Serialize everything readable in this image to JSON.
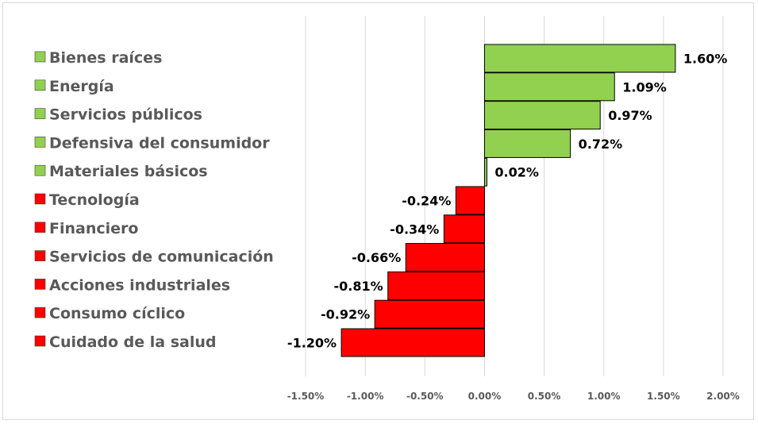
{
  "chart_data": {
    "type": "bar",
    "orientation": "horizontal",
    "categories": [
      "Bienes raíces",
      "Energía",
      "Servicios públicos",
      "Defensiva del consumidor",
      "Materiales básicos",
      "Tecnología",
      "Financiero",
      "Servicios de comunicación",
      "Acciones industriales",
      "Consumo cíclico",
      "Cuidado de la salud"
    ],
    "values": [
      1.6,
      1.09,
      0.97,
      0.72,
      0.02,
      -0.24,
      -0.34,
      -0.66,
      -0.81,
      -0.92,
      -1.2
    ],
    "data_labels": [
      "1.60%",
      "1.09%",
      "0.97%",
      "0.72%",
      "0.02%",
      "-0.24%",
      "-0.34%",
      "-0.66%",
      "-0.81%",
      "-0.92%",
      "-1.20%"
    ],
    "unit": "%",
    "xlim": [
      -1.5,
      2.0
    ],
    "x_ticks": [
      -1.5,
      -1.0,
      -0.5,
      0.0,
      0.5,
      1.0,
      1.5,
      2.0
    ],
    "x_tick_labels": [
      "-1.50%",
      "-1.00%",
      "-0.50%",
      "0.00%",
      "0.50%",
      "1.00%",
      "1.50%",
      "2.00%"
    ],
    "grid": "vertical",
    "legend_position": "left",
    "colors": {
      "positive": "#92d050",
      "negative": "#ff0000",
      "bar_border": "#000000",
      "grid": "#d9d9d9"
    },
    "title": "",
    "xlabel": "",
    "ylabel": ""
  }
}
